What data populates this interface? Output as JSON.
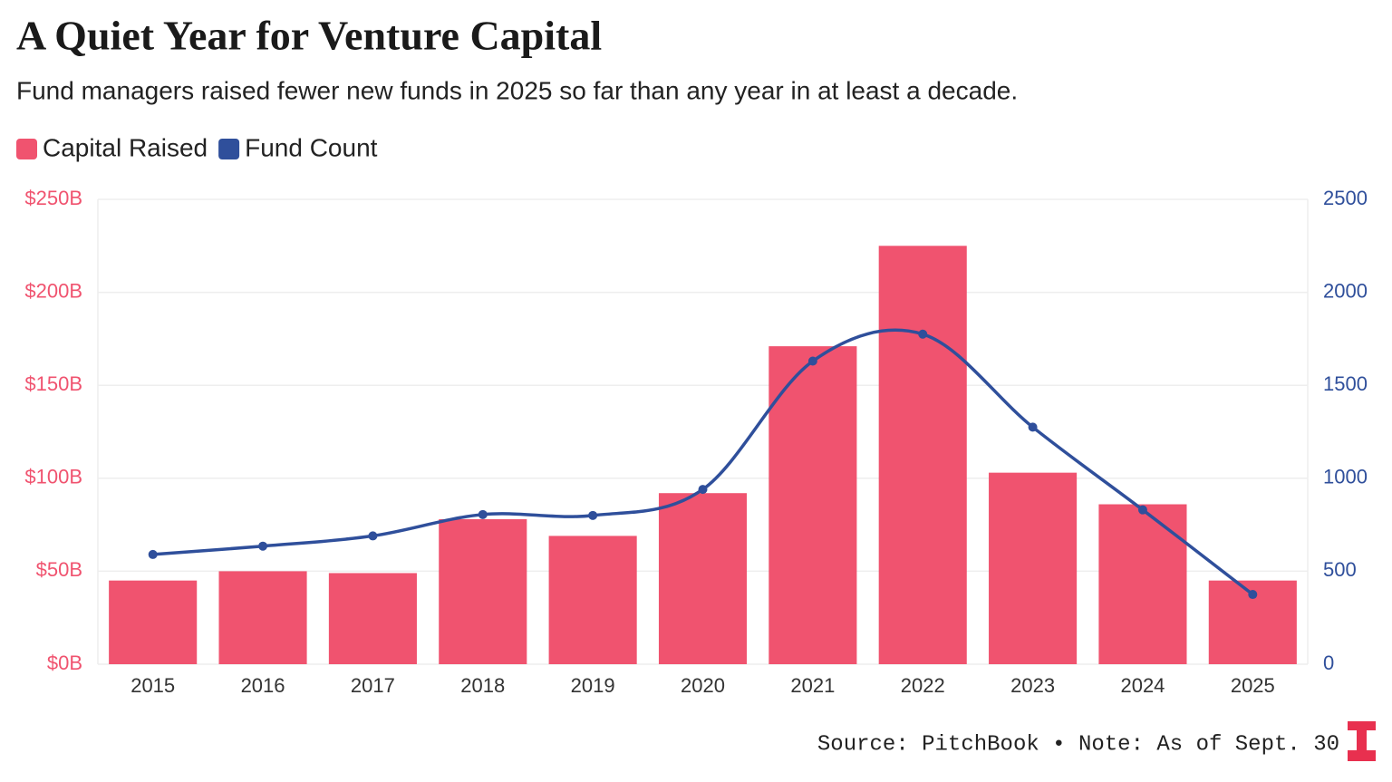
{
  "chart_data": {
    "type": "bar",
    "title": "A Quiet Year for Venture Capital",
    "subtitle": "Fund managers raised fewer new funds in 2025 so far than any year in at least a decade.",
    "source": "Source: PitchBook • Note: As of Sept. 30",
    "categories": [
      "2015",
      "2016",
      "2017",
      "2018",
      "2019",
      "2020",
      "2021",
      "2022",
      "2023",
      "2024",
      "2025"
    ],
    "series": [
      {
        "name": "Capital Raised",
        "type": "bar",
        "axis": "y",
        "color": "#f0536f",
        "values": [
          45,
          50,
          49,
          78,
          69,
          92,
          171,
          225,
          103,
          86,
          45
        ]
      },
      {
        "name": "Fund Count",
        "type": "line",
        "axis": "y2",
        "color": "#2f4f9b",
        "values": [
          590,
          635,
          690,
          805,
          800,
          940,
          1630,
          1775,
          1275,
          830,
          375
        ]
      }
    ],
    "ylim": [
      0,
      250
    ],
    "yticks": [
      {
        "value": 0,
        "label": "$0B"
      },
      {
        "value": 50,
        "label": "$50B"
      },
      {
        "value": 100,
        "label": "$100B"
      },
      {
        "value": 150,
        "label": "$150B"
      },
      {
        "value": 200,
        "label": "$200B"
      },
      {
        "value": 250,
        "label": "$250B"
      }
    ],
    "y2lim": [
      0,
      2500
    ],
    "y2ticks": [
      0,
      500,
      1000,
      1500,
      2000,
      2500
    ],
    "grid": true,
    "legend": "top-left"
  }
}
